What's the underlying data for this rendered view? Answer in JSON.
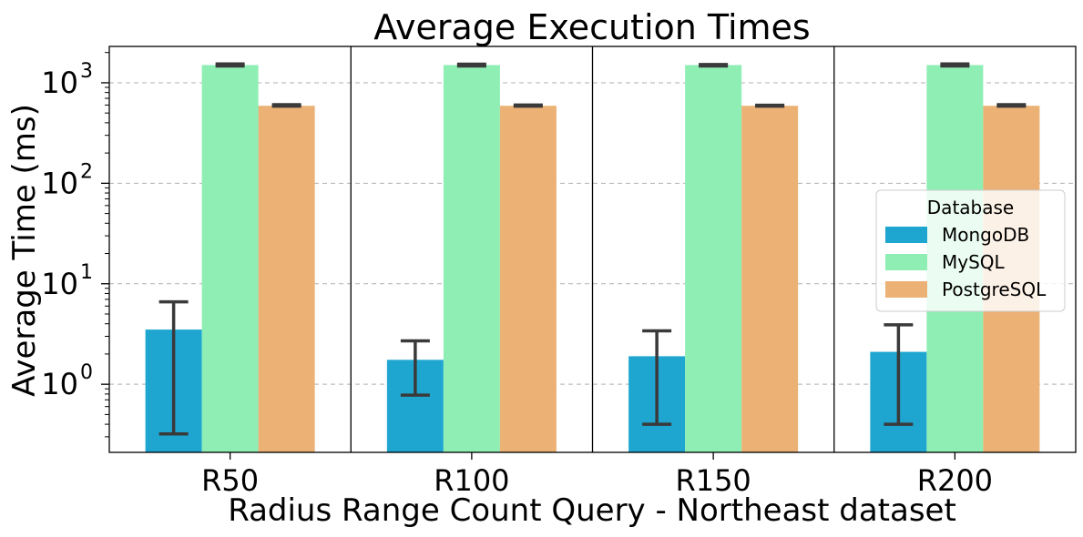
{
  "chart_data": {
    "type": "bar",
    "title": "Average Execution Times",
    "xlabel": "Radius Range Count Query - Northeast dataset",
    "ylabel": "Average Time (ms)",
    "yscale": "log",
    "ylim": [
      0.21,
      2300
    ],
    "yticks": [
      {
        "value": 1,
        "base": "10",
        "exp": "0"
      },
      {
        "value": 10,
        "base": "10",
        "exp": "1"
      },
      {
        "value": 100,
        "base": "10",
        "exp": "2"
      },
      {
        "value": 1000,
        "base": "10",
        "exp": "3"
      }
    ],
    "grid": "y-major-dashed",
    "categories": [
      "R50",
      "R100",
      "R150",
      "R200"
    ],
    "series": [
      {
        "name": "MongoDB",
        "color": "#1ea6d1",
        "values": [
          3.5,
          1.75,
          1.9,
          2.1
        ],
        "err_low": [
          0.32,
          0.78,
          0.4,
          0.4
        ],
        "err_high": [
          6.6,
          2.7,
          3.4,
          3.9
        ]
      },
      {
        "name": "MySQL",
        "color": "#8eeeb4",
        "values": [
          1500,
          1500,
          1500,
          1500
        ],
        "err_low": [
          1470,
          1470,
          1470,
          1470
        ],
        "err_high": [
          1540,
          1530,
          1520,
          1540
        ]
      },
      {
        "name": "PostgreSQL",
        "color": "#ecb174",
        "values": [
          590,
          590,
          590,
          590
        ],
        "err_low": [
          585,
          585,
          585,
          585
        ],
        "err_high": [
          605,
          600,
          598,
          605
        ]
      }
    ],
    "legend": {
      "title": "Database",
      "placement": "center-right"
    }
  }
}
